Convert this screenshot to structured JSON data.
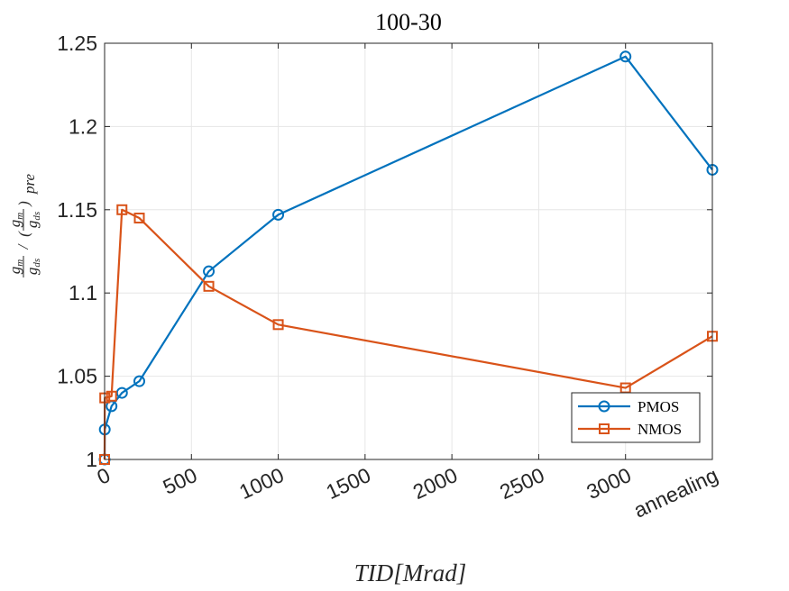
{
  "chart_data": {
    "type": "line",
    "title": "100-30",
    "xlabel": "TID[Mrad]",
    "ylabel": "gm/gds / (gm/gds)pre",
    "xlim": [
      0,
      3500
    ],
    "ylim": [
      1,
      1.25
    ],
    "xticks": [
      {
        "value": 0,
        "label": "0"
      },
      {
        "value": 500,
        "label": "500"
      },
      {
        "value": 1000,
        "label": "1000"
      },
      {
        "value": 1500,
        "label": "1500"
      },
      {
        "value": 2000,
        "label": "2000"
      },
      {
        "value": 2500,
        "label": "2500"
      },
      {
        "value": 3000,
        "label": "3000"
      },
      {
        "value": 3500,
        "label": "annealing"
      }
    ],
    "yticks": [
      {
        "value": 1,
        "label": "1"
      },
      {
        "value": 1.05,
        "label": "1.05"
      },
      {
        "value": 1.1,
        "label": "1.1"
      },
      {
        "value": 1.15,
        "label": "1.15"
      },
      {
        "value": 1.2,
        "label": "1.2"
      },
      {
        "value": 1.25,
        "label": "1.25"
      }
    ],
    "grid": true,
    "legend_position": "bottom-right",
    "series": [
      {
        "name": "PMOS",
        "color": "#0072BD",
        "marker": "circle",
        "x": [
          0,
          1,
          40,
          100,
          200,
          600,
          1000,
          3000,
          3500
        ],
        "y": [
          1.0,
          1.018,
          1.032,
          1.04,
          1.047,
          1.113,
          1.147,
          1.242,
          1.174
        ]
      },
      {
        "name": "NMOS",
        "color": "#D95319",
        "marker": "square",
        "x": [
          0,
          1,
          40,
          100,
          200,
          600,
          1000,
          3000,
          3500
        ],
        "y": [
          1.0,
          1.037,
          1.038,
          1.15,
          1.145,
          1.104,
          1.081,
          1.043,
          1.074
        ]
      }
    ]
  }
}
